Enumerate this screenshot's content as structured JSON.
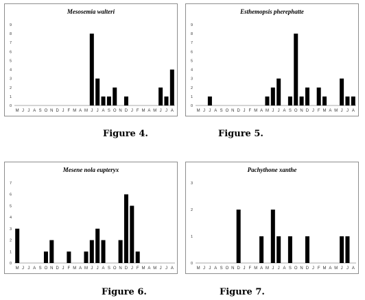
{
  "months": [
    "M",
    "J",
    "J",
    "A",
    "S",
    "O",
    "N",
    "D",
    "J",
    "F",
    "M",
    "A",
    "M",
    "J",
    "J",
    "A",
    "S",
    "O",
    "N",
    "D",
    "J",
    "F",
    "M",
    "A",
    "M",
    "J",
    "J",
    "A"
  ],
  "captions": [
    "Figure 4.",
    "Figure 5.",
    "Figure 6.",
    "Figure 7."
  ],
  "chart_data": [
    {
      "type": "bar",
      "title": "Mesosemia walteri",
      "ylim": [
        0,
        9
      ],
      "yticks": [
        0,
        1,
        2,
        3,
        4,
        5,
        6,
        7,
        8,
        9
      ],
      "categories": [
        "M",
        "J",
        "J",
        "A",
        "S",
        "O",
        "N",
        "D",
        "J",
        "F",
        "M",
        "A",
        "M",
        "J",
        "J",
        "A",
        "S",
        "O",
        "N",
        "D",
        "J",
        "F",
        "M",
        "A",
        "M",
        "J",
        "J",
        "A"
      ],
      "values": [
        0,
        0,
        0,
        0,
        0,
        0,
        0,
        0,
        0,
        0,
        0,
        0,
        0,
        8,
        3,
        1,
        1,
        2,
        0,
        1,
        0,
        0,
        0,
        0,
        0,
        2,
        1,
        4
      ]
    },
    {
      "type": "bar",
      "title": "Esthemopsis pherephatte",
      "ylim": [
        0,
        9
      ],
      "yticks": [
        0,
        1,
        2,
        3,
        4,
        5,
        6,
        7,
        8,
        9
      ],
      "categories": [
        "M",
        "J",
        "J",
        "A",
        "S",
        "O",
        "N",
        "D",
        "J",
        "F",
        "M",
        "A",
        "M",
        "J",
        "J",
        "A",
        "S",
        "O",
        "N",
        "D",
        "J",
        "F",
        "M",
        "A",
        "M",
        "J",
        "J",
        "A"
      ],
      "values": [
        0,
        0,
        1,
        0,
        0,
        0,
        0,
        0,
        0,
        0,
        0,
        0,
        1,
        2,
        3,
        0,
        1,
        8,
        1,
        2,
        0,
        2,
        1,
        0,
        0,
        3,
        1,
        1
      ]
    },
    {
      "type": "bar",
      "title": "Mesene nola eupteryx",
      "ylim": [
        0,
        7
      ],
      "yticks": [
        0,
        1,
        2,
        3,
        4,
        5,
        6,
        7
      ],
      "categories": [
        "M",
        "J",
        "J",
        "A",
        "S",
        "O",
        "N",
        "D",
        "J",
        "F",
        "M",
        "A",
        "M",
        "J",
        "J",
        "A",
        "S",
        "O",
        "N",
        "D",
        "J",
        "F",
        "M",
        "A",
        "M",
        "J",
        "J",
        "A"
      ],
      "values": [
        3,
        0,
        0,
        0,
        0,
        1,
        2,
        0,
        0,
        1,
        0,
        0,
        1,
        2,
        3,
        2,
        0,
        0,
        2,
        6,
        5,
        1,
        0,
        0,
        0,
        0,
        0,
        0
      ]
    },
    {
      "type": "bar",
      "title": "Pachythone xanthe",
      "ylim": [
        0,
        3
      ],
      "yticks": [
        0,
        1,
        2,
        3
      ],
      "categories": [
        "M",
        "J",
        "J",
        "A",
        "S",
        "O",
        "N",
        "D",
        "J",
        "F",
        "M",
        "A",
        "M",
        "J",
        "J",
        "A",
        "S",
        "O",
        "N",
        "D",
        "J",
        "F",
        "M",
        "A",
        "M",
        "J",
        "J",
        "A"
      ],
      "values": [
        0,
        0,
        0,
        0,
        0,
        0,
        0,
        2,
        0,
        0,
        0,
        1,
        0,
        2,
        1,
        0,
        1,
        0,
        0,
        1,
        0,
        0,
        0,
        0,
        0,
        1,
        1,
        0
      ]
    }
  ]
}
